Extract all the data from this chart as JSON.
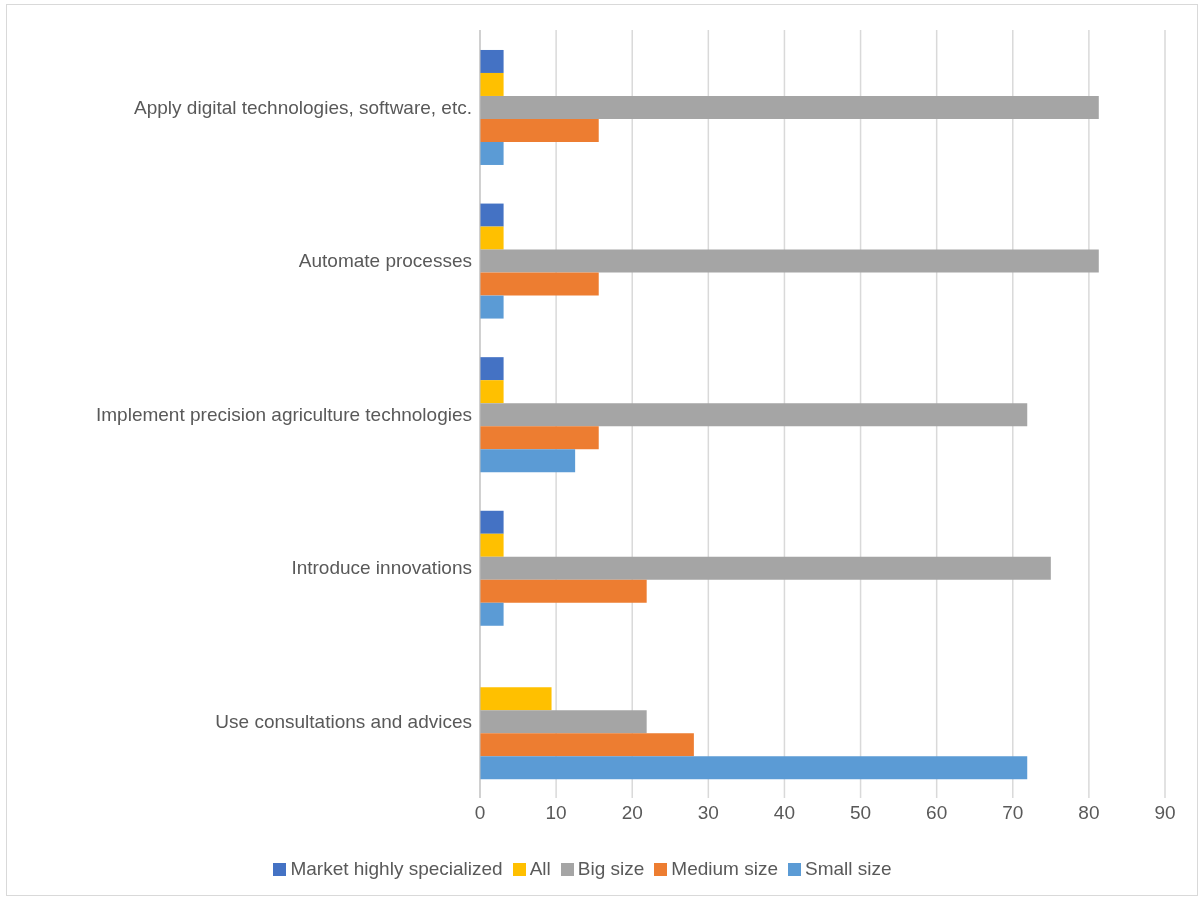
{
  "chart_data": {
    "type": "bar",
    "orientation": "horizontal",
    "categories": [
      "Apply digital technologies, software, etc.",
      "Automate processes",
      "Implement precision agriculture technologies",
      "Introduce innovations",
      "Use consultations and advices"
    ],
    "series": [
      {
        "name": "Market highly specialized",
        "color": "#4472c4",
        "values": [
          3.1,
          3.1,
          3.1,
          3.1,
          0
        ]
      },
      {
        "name": "All",
        "color": "#ffc000",
        "values": [
          3.1,
          3.1,
          3.1,
          3.1,
          9.4
        ]
      },
      {
        "name": "Big size",
        "color": "#a5a5a5",
        "values": [
          81.3,
          81.3,
          71.9,
          75,
          21.9
        ]
      },
      {
        "name": "Medium size",
        "color": "#ed7d31",
        "values": [
          15.6,
          15.6,
          15.6,
          21.9,
          28.1
        ]
      },
      {
        "name": "Small size",
        "color": "#5b9bd5",
        "values": [
          3.1,
          3.1,
          12.5,
          3.1,
          71.9
        ]
      }
    ],
    "xlim": [
      0,
      90
    ],
    "xticks": [
      0,
      10,
      20,
      30,
      40,
      50,
      60,
      70,
      80,
      90
    ],
    "grid": "x",
    "legend": "bottom"
  }
}
